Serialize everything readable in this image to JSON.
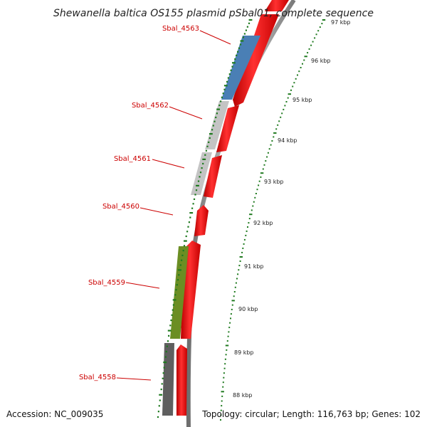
{
  "title": "Shewanella baltica OS155 plasmid pSbal01, complete sequence",
  "accession": "Accession: NC_009035",
  "summary": "Topology: circular; Length: 116,763 bp; Genes: 102",
  "colors": {
    "gene_label": "#cc0000",
    "forward_feature": "#ff1a1a",
    "tick": "#1f7a1f",
    "backbone": "#8f8f8f",
    "gene_blue": "#4a7fb5",
    "gene_gray": "#c4c4c4",
    "gene_olive": "#6b8e23",
    "gene_dark": "#5f5f5f"
  },
  "genes": [
    {
      "name": "Sbal_4563",
      "color": "gene_blue"
    },
    {
      "name": "Sbal_4562",
      "color": "gene_gray"
    },
    {
      "name": "Sbal_4561",
      "color": "gene_gray"
    },
    {
      "name": "Sbal_4560",
      "color": "none"
    },
    {
      "name": "Sbal_4559",
      "color": "gene_olive"
    },
    {
      "name": "Sbal_4558",
      "color": "gene_dark"
    }
  ],
  "ticks": [
    "97 kbp",
    "96 kbp",
    "95 kbp",
    "94 kbp",
    "93 kbp",
    "92 kbp",
    "91 kbp",
    "90 kbp",
    "89 kbp",
    "88 kbp"
  ]
}
